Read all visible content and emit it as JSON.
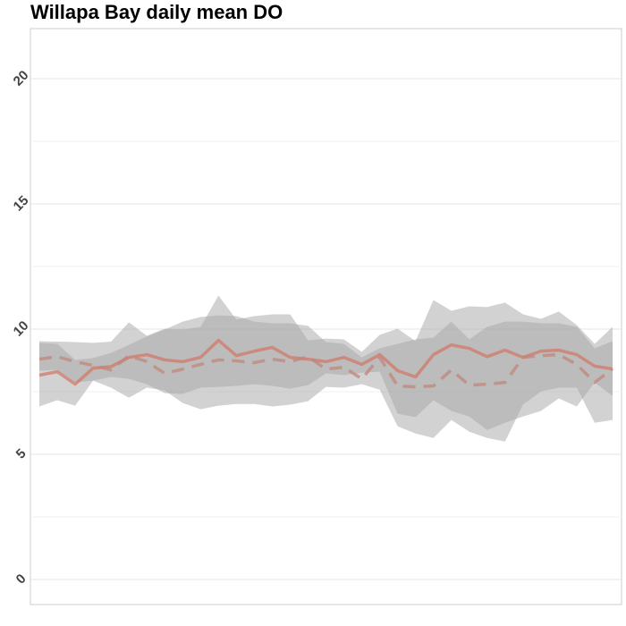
{
  "chart_data": {
    "type": "line",
    "title": "Willapa Bay daily mean DO",
    "categories": [
      null,
      null,
      null,
      null,
      null,
      null,
      null,
      null,
      null,
      null,
      null,
      null,
      null,
      null,
      null,
      null,
      null,
      null,
      null,
      null,
      null,
      null,
      null,
      null,
      null,
      null,
      null,
      null,
      null,
      null,
      null,
      null,
      null
    ],
    "ylim": [
      -1.0,
      22.0
    ],
    "yticks": [
      0,
      5,
      10,
      15,
      20
    ],
    "yminorticks": [
      2.5,
      7.5,
      12.5,
      17.5
    ],
    "grid": true,
    "bands": [
      {
        "color": "#a6a6a6",
        "upper": [
          9.52,
          9.5,
          9.48,
          9.45,
          9.5,
          10.27,
          9.73,
          10.02,
          9.98,
          10.09,
          11.34,
          10.38,
          10.52,
          10.59,
          10.59,
          9.55,
          9.62,
          9.59,
          9.09,
          9.77,
          10.02,
          9.52,
          11.16,
          10.73,
          10.91,
          10.88,
          11.06,
          10.59,
          10.41,
          10.7,
          10.16,
          9.41,
          10.09
        ],
        "lower": [
          6.91,
          7.16,
          6.94,
          7.94,
          7.66,
          7.26,
          7.66,
          7.55,
          7.05,
          6.8,
          6.94,
          7.01,
          7.01,
          6.91,
          6.98,
          7.12,
          7.69,
          7.66,
          7.8,
          7.58,
          6.12,
          5.83,
          5.65,
          6.37,
          5.9,
          5.65,
          5.51,
          6.98,
          7.51,
          7.66,
          7.66,
          6.26,
          6.37
        ]
      },
      {
        "color": "#a6a6a6",
        "upper": [
          9.45,
          9.41,
          8.77,
          8.84,
          9.05,
          9.37,
          9.7,
          9.98,
          10.3,
          10.48,
          10.55,
          10.52,
          10.3,
          10.23,
          10.23,
          10.13,
          9.48,
          9.41,
          8.87,
          9.23,
          9.41,
          9.59,
          9.66,
          10.3,
          9.59,
          10.09,
          10.3,
          10.3,
          10.23,
          10.23,
          10.09,
          9.23,
          9.52
        ],
        "lower": [
          8.34,
          8.37,
          7.87,
          7.94,
          8.09,
          8.01,
          7.8,
          7.44,
          7.41,
          7.66,
          7.69,
          7.73,
          7.8,
          7.73,
          7.62,
          7.76,
          8.23,
          8.16,
          8.26,
          8.3,
          6.62,
          6.48,
          7.16,
          6.73,
          6.51,
          5.97,
          6.26,
          6.51,
          6.73,
          7.23,
          6.91,
          7.87,
          7.33
        ]
      }
    ],
    "series": [
      {
        "color": "#d07a68",
        "dash": false,
        "values": [
          8.16,
          8.3,
          7.8,
          8.44,
          8.5,
          8.87,
          8.98,
          8.77,
          8.7,
          8.87,
          9.55,
          8.94,
          9.12,
          9.27,
          8.87,
          8.8,
          8.7,
          8.87,
          8.59,
          8.98,
          8.34,
          8.09,
          8.98,
          9.37,
          9.23,
          8.9,
          9.16,
          8.87,
          9.12,
          9.16,
          8.98,
          8.52,
          8.41
        ]
      },
      {
        "color": "#c0877b",
        "dash": true,
        "values": [
          8.8,
          8.9,
          8.7,
          8.55,
          8.37,
          8.94,
          8.7,
          8.23,
          8.4,
          8.59,
          8.77,
          8.73,
          8.66,
          8.8,
          8.7,
          8.9,
          8.4,
          8.48,
          8.01,
          8.87,
          7.73,
          7.69,
          7.73,
          8.37,
          7.76,
          7.8,
          7.87,
          8.87,
          8.94,
          8.98,
          8.59,
          7.87,
          8.41
        ]
      }
    ]
  }
}
